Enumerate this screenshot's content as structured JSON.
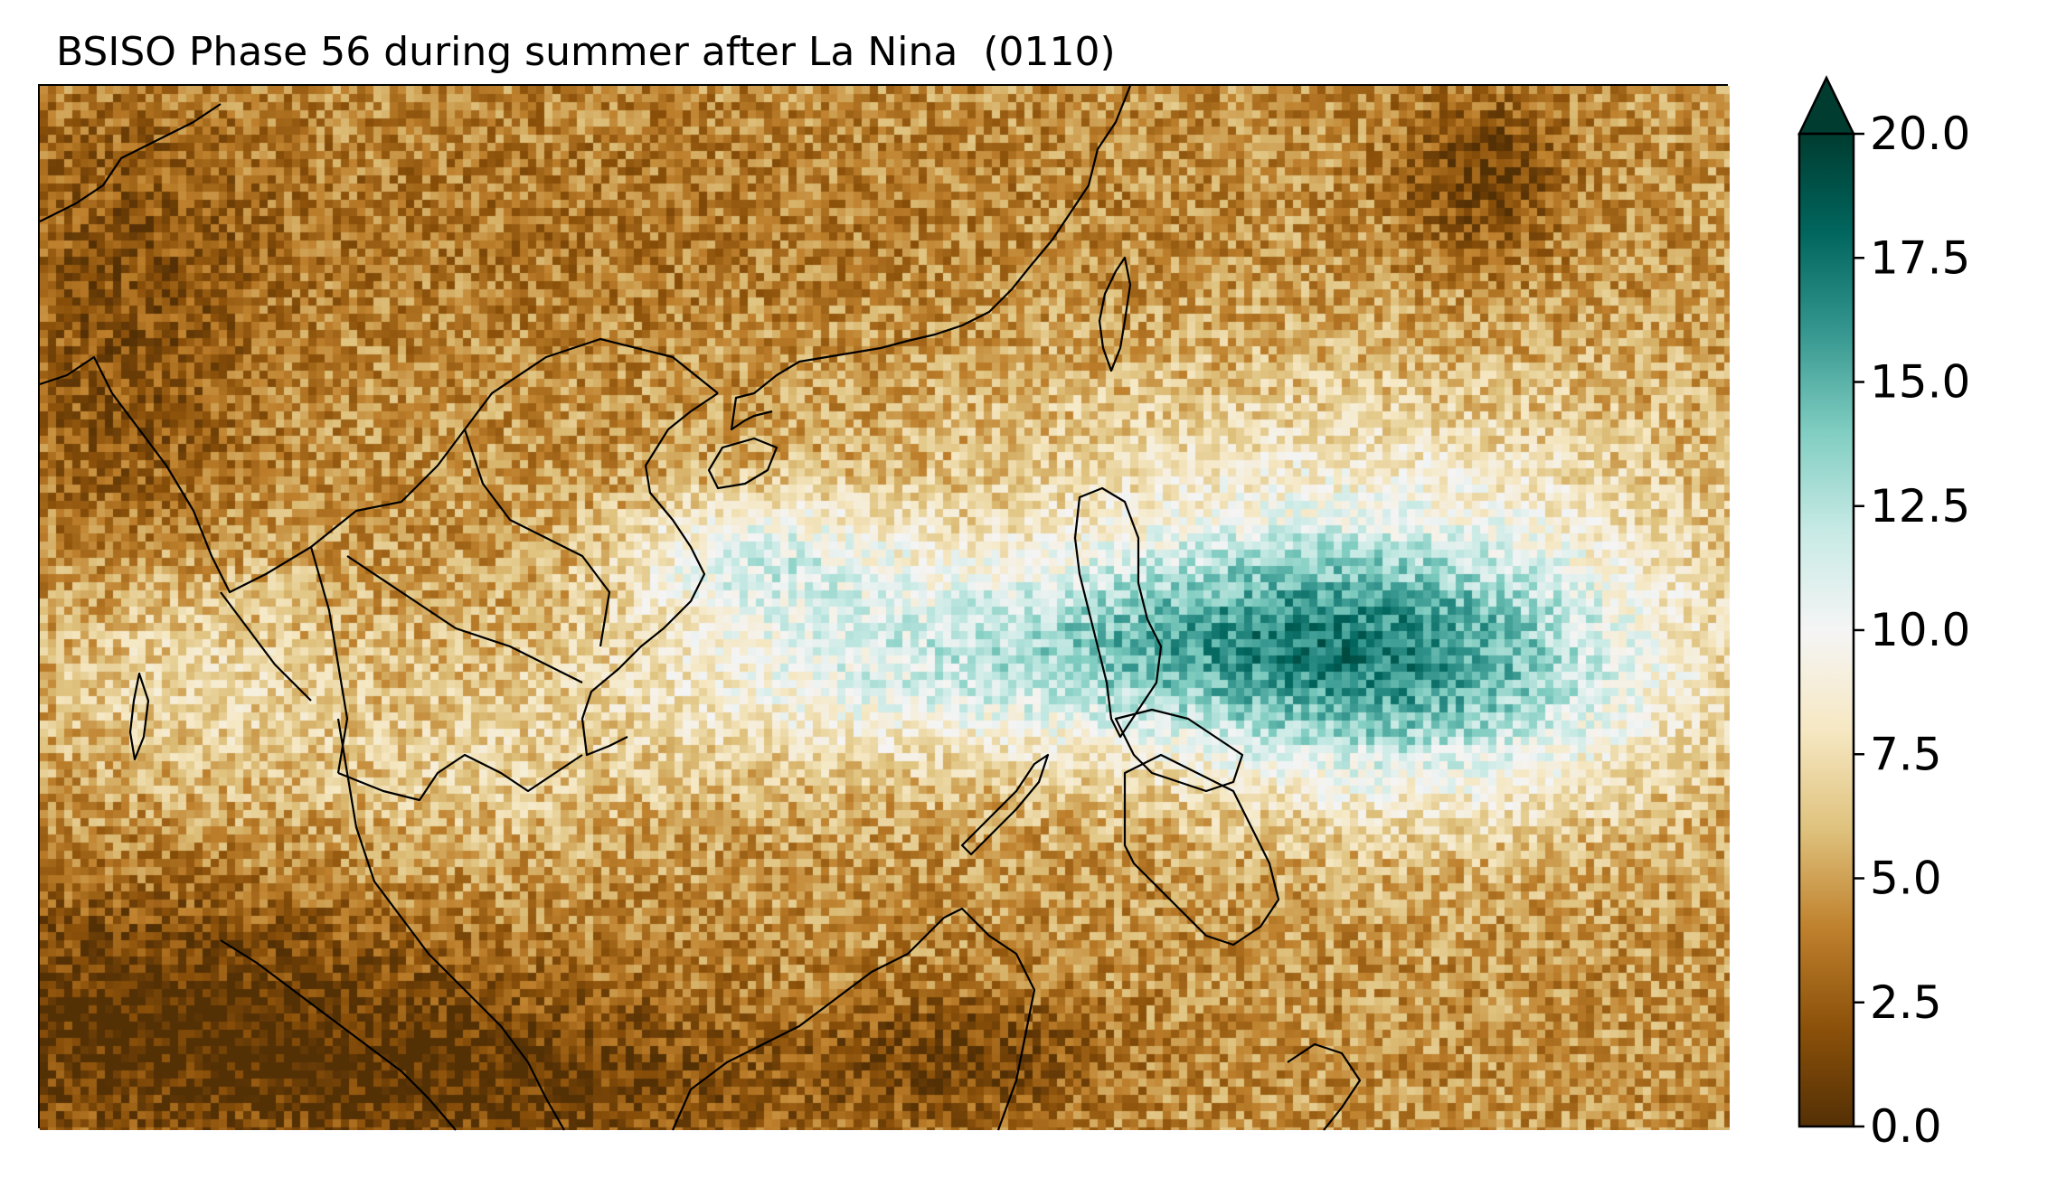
{
  "title": "BSISO Phase 56 during summer after La Nina  (0110)",
  "colormap": {
    "name": "BrBG",
    "stops": [
      "#543005",
      "#8c510a",
      "#bf812d",
      "#dfc27d",
      "#f6e8c3",
      "#f5f5f5",
      "#c7eae5",
      "#80cdc1",
      "#35978f",
      "#01665e",
      "#003c30"
    ]
  },
  "colorbar": {
    "min": 0.0,
    "max": 20.0,
    "extend": "max",
    "ticks": [
      "0.0",
      "2.5",
      "5.0",
      "7.5",
      "10.0",
      "12.5",
      "15.0",
      "17.5",
      "20.0"
    ]
  },
  "map": {
    "region": "Southeast Asia / South China Sea / Philippines",
    "coastline_color": "#000000",
    "field": "gridded values, brown = low, teal = high"
  }
}
